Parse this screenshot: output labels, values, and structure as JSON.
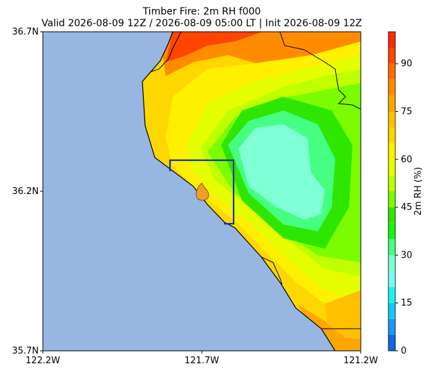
{
  "chart_data": {
    "type": "contour-map",
    "title": "Timber Fire: 2m RH f000",
    "subtitle": "Valid 2026-08-09 12Z / 2026-08-09 05:00 LT | Init 2026-08-09 12Z",
    "xlim": [
      -122.2,
      -121.2
    ],
    "ylim": [
      35.7,
      36.7
    ],
    "xticks": [
      {
        "value": -122.2,
        "label": "122.2W"
      },
      {
        "value": -121.7,
        "label": "121.7W"
      },
      {
        "value": -121.2,
        "label": "121.2W"
      }
    ],
    "yticks": [
      {
        "value": 35.7,
        "label": "35.7N"
      },
      {
        "value": 36.2,
        "label": "36.2N"
      },
      {
        "value": 36.7,
        "label": "36.7N"
      }
    ],
    "colorbar": {
      "label": "2m RH (%)",
      "levels": [
        0,
        5,
        10,
        15,
        20,
        25,
        30,
        35,
        40,
        45,
        50,
        55,
        60,
        65,
        70,
        75,
        80,
        85,
        90,
        95,
        100
      ],
      "colors": [
        "#1464e6",
        "#1e96f0",
        "#14c8f5",
        "#1ef0f5",
        "#78fff0",
        "#7fffd4",
        "#46ff82",
        "#14f514",
        "#2ee600",
        "#7cfc00",
        "#c0ff00",
        "#e6ff00",
        "#fff000",
        "#ffd700",
        "#ffc000",
        "#ffa500",
        "#ff8c00",
        "#ff6a00",
        "#ff4500",
        "#ff2a00"
      ],
      "ticks": [
        0,
        15,
        30,
        45,
        60,
        75,
        90
      ]
    }
  }
}
